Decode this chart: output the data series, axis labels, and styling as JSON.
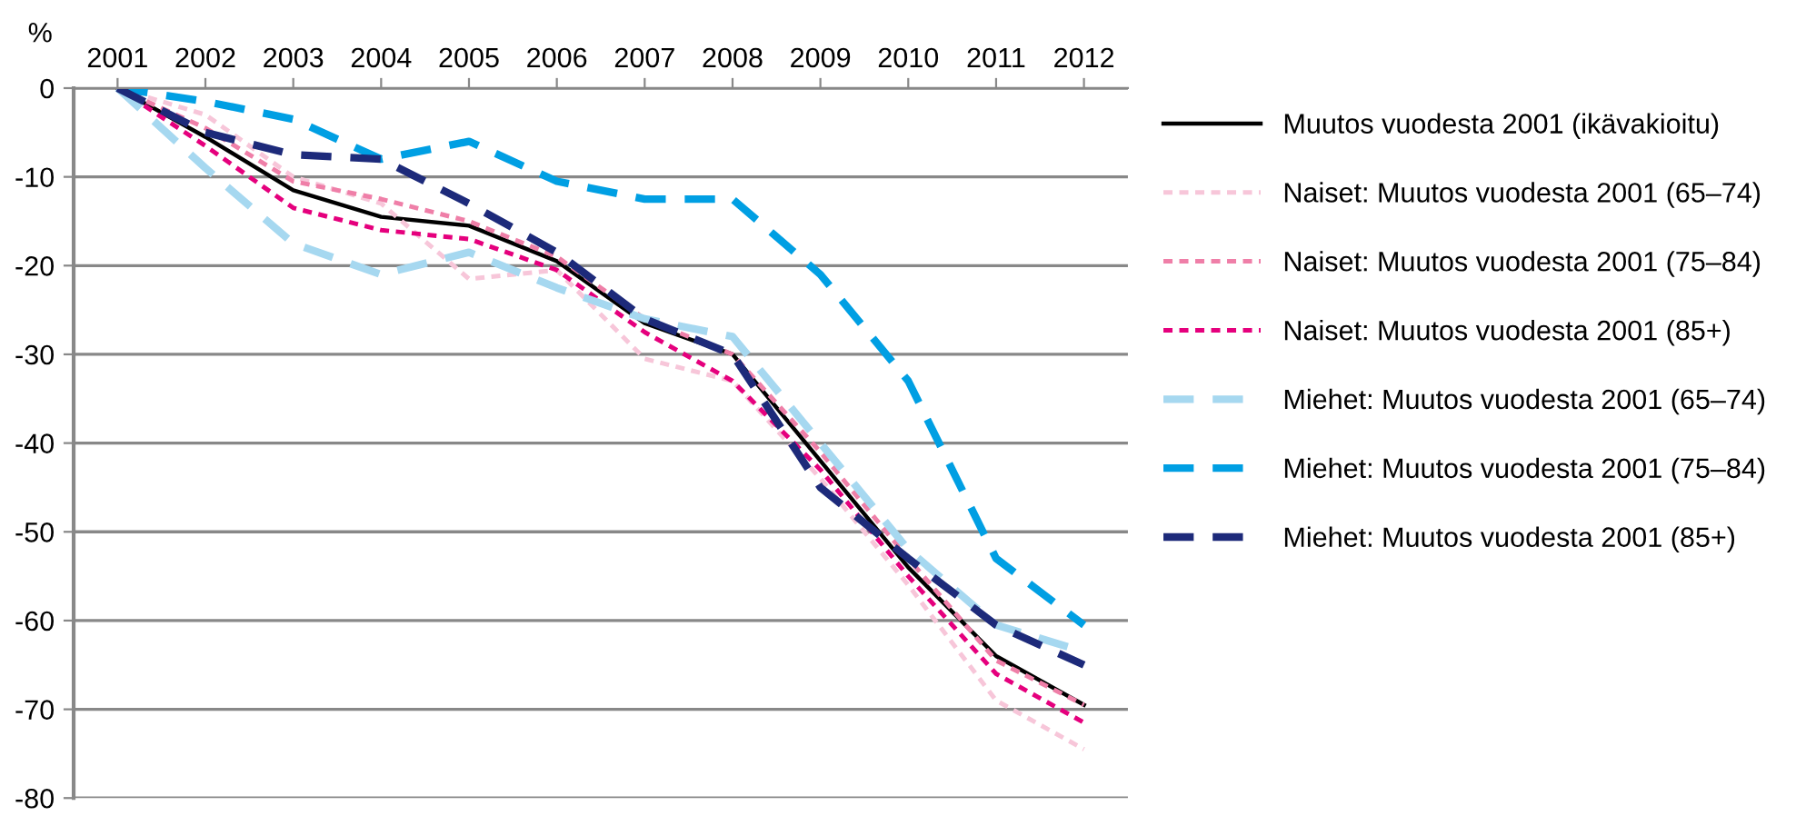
{
  "chart_data": {
    "type": "line",
    "ylabel": "%",
    "categories": [
      "2001",
      "2002",
      "2003",
      "2004",
      "2005",
      "2006",
      "2007",
      "2008",
      "2009",
      "2010",
      "2011",
      "2012"
    ],
    "ylim": [
      -80,
      0
    ],
    "yticks": [
      0,
      -10,
      -20,
      -30,
      -40,
      -50,
      -60,
      -70,
      -80
    ],
    "grid": "y",
    "legend": "right",
    "marker": "none",
    "series": [
      {
        "name": "Muutos vuodesta 2001 (ikävakioitu)",
        "color": "#000000",
        "line_style": "solid",
        "values": [
          0,
          -5.5,
          -11.5,
          -14.5,
          -15.5,
          -19.5,
          -26.5,
          -30,
          -42,
          -54,
          -64,
          -69.5
        ]
      },
      {
        "name": "Naiset: Muutos vuodesta 2001 (65–74)",
        "color": "#f7c6d9",
        "line_style": "dotted",
        "values": [
          0,
          -3,
          -10,
          -13,
          -21.5,
          -20.5,
          -30.5,
          -33,
          -44,
          -56,
          -69,
          -74.5
        ]
      },
      {
        "name": "Naiset: Muutos vuodesta 2001 (75–84)",
        "color": "#ef7fa8",
        "line_style": "dotted",
        "values": [
          0,
          -4.5,
          -10.5,
          -12.5,
          -15,
          -19,
          -26,
          -30,
          -41,
          -53,
          -64.5,
          -69.5
        ]
      },
      {
        "name": "Naiset: Muutos vuodesta 2001 (85+)",
        "color": "#e5007d",
        "line_style": "dotted",
        "values": [
          0,
          -6.5,
          -13.5,
          -16,
          -17,
          -20.5,
          -27.5,
          -33,
          -43,
          -55,
          -66,
          -71.5
        ]
      },
      {
        "name": "Miehet: Muutos vuodesta 2001 (65–74)",
        "color": "#a6d8f0",
        "line_style": "dashed",
        "values": [
          0,
          -9,
          -17.5,
          -21,
          -18.5,
          -22.5,
          -26,
          -28,
          -40,
          -52,
          -60.5,
          -63.5
        ]
      },
      {
        "name": "Miehet: Muutos vuodesta 2001 (75–84)",
        "color": "#009fe3",
        "line_style": "dashed",
        "values": [
          0,
          -1.5,
          -3.5,
          -8,
          -6,
          -10.5,
          -12.5,
          -12.5,
          -21,
          -33,
          -53,
          -60.5
        ]
      },
      {
        "name": "Miehet: Muutos vuodesta 2001 (85+)",
        "color": "#1d2a7a",
        "line_style": "dashed",
        "values": [
          0,
          -5,
          -7.5,
          -8,
          -13,
          -18.5,
          -26,
          -30,
          -45,
          -53,
          -60.5,
          -65
        ]
      }
    ]
  }
}
